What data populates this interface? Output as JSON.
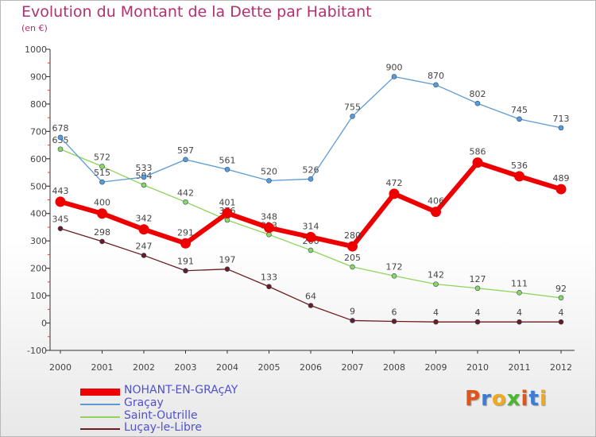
{
  "title": "Evolution du Montant de la Dette par Habitant",
  "unit": "(en €)",
  "logo": {
    "text": "Proxiti",
    "colors": [
      "#e0531b",
      "#3c7dd8",
      "#f0a81c",
      "#4ab82d",
      "#e0531b",
      "#3c7dd8",
      "#f0a81c"
    ]
  },
  "chart_data": {
    "type": "line",
    "x": [
      "2000",
      "2001",
      "2002",
      "2003",
      "2004",
      "2005",
      "2006",
      "2007",
      "2008",
      "2009",
      "2010",
      "2011",
      "2012"
    ],
    "ylim": [
      -100,
      1000
    ],
    "yticks": [
      "-100",
      "0",
      "100",
      "200",
      "300",
      "400",
      "500",
      "600",
      "700",
      "800",
      "900",
      "1000"
    ],
    "grid": false,
    "legend": "bottom-left",
    "series": [
      {
        "name": "NOHANT-EN-GRAçAY",
        "color": "#ee0000",
        "values": [
          443,
          400,
          342,
          291,
          401,
          348,
          314,
          280,
          472,
          406,
          586,
          536,
          489
        ]
      },
      {
        "name": "Graçay",
        "color": "#5b9bd5",
        "values": [
          678,
          515,
          533,
          597,
          561,
          520,
          526,
          755,
          900,
          870,
          802,
          745,
          713
        ]
      },
      {
        "name": "Saint-Outrille",
        "color": "#8fd45c",
        "values": [
          635,
          572,
          504,
          442,
          376,
          323,
          266,
          205,
          172,
          142,
          127,
          111,
          92
        ]
      },
      {
        "name": "Luçay-le-Libre",
        "color": "#6b1c1c",
        "values": [
          345,
          298,
          247,
          191,
          197,
          133,
          64,
          9,
          6,
          4,
          4,
          4,
          4
        ]
      }
    ]
  }
}
